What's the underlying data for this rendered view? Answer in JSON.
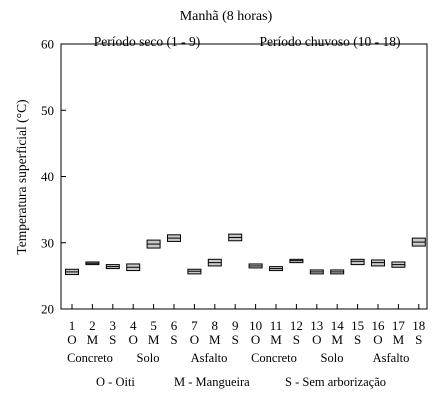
{
  "chart_data": {
    "type": "box",
    "title": "Manhã (8 horas)",
    "annotations": [
      "Período seco (1 - 9)",
      "Período chuvoso (10 - 18)"
    ],
    "ylabel": "Temperatura superficial (°C)",
    "xlabel": "",
    "ylim": [
      20,
      60
    ],
    "yticks": [
      20,
      30,
      40,
      50,
      60
    ],
    "grid": false,
    "categories": [
      "1",
      "2",
      "3",
      "4",
      "5",
      "6",
      "7",
      "8",
      "9",
      "10",
      "11",
      "12",
      "13",
      "14",
      "15",
      "16",
      "17",
      "18"
    ],
    "treatment_codes": [
      "O",
      "M",
      "S",
      "O",
      "M",
      "S",
      "O",
      "M",
      "S",
      "O",
      "M",
      "S",
      "O",
      "M",
      "S",
      "O",
      "M",
      "S"
    ],
    "surface_groups": [
      "Concreto",
      "Solo",
      "Asfalto",
      "Concreto",
      "Solo",
      "Asfalto"
    ],
    "boxes": [
      {
        "low": 25.2,
        "median": 25.6,
        "high": 26.0
      },
      {
        "low": 26.7,
        "median": 26.9,
        "high": 27.1
      },
      {
        "low": 26.1,
        "median": 26.4,
        "high": 26.7
      },
      {
        "low": 25.8,
        "median": 26.3,
        "high": 26.8
      },
      {
        "low": 29.2,
        "median": 29.8,
        "high": 30.4
      },
      {
        "low": 30.2,
        "median": 30.7,
        "high": 31.2
      },
      {
        "low": 25.3,
        "median": 25.7,
        "high": 26.0
      },
      {
        "low": 26.5,
        "median": 27.0,
        "high": 27.5
      },
      {
        "low": 30.3,
        "median": 30.8,
        "high": 31.3
      },
      {
        "low": 26.2,
        "median": 26.5,
        "high": 26.8
      },
      {
        "low": 25.8,
        "median": 26.1,
        "high": 26.4
      },
      {
        "low": 27.0,
        "median": 27.3,
        "high": 27.5
      },
      {
        "low": 25.3,
        "median": 25.6,
        "high": 25.9
      },
      {
        "low": 25.3,
        "median": 25.6,
        "high": 25.9
      },
      {
        "low": 26.7,
        "median": 27.2,
        "high": 27.5
      },
      {
        "low": 26.5,
        "median": 27.0,
        "high": 27.4
      },
      {
        "low": 26.3,
        "median": 26.7,
        "high": 27.1
      },
      {
        "low": 29.5,
        "median": 30.1,
        "high": 30.7
      }
    ],
    "legend": [
      "O -  Oiti",
      "M - Mangueira",
      "S - Sem arborização"
    ],
    "colors": {
      "box_fill": "#c8c8c8",
      "stroke": "#000000",
      "background": "#ffffff"
    }
  }
}
